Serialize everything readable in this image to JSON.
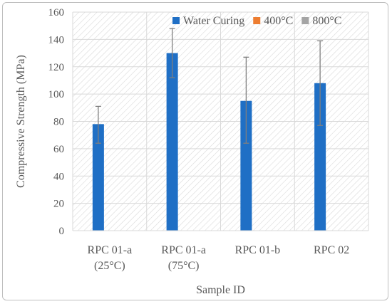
{
  "chart_data": {
    "type": "bar",
    "title": "",
    "xlabel": "Sample ID",
    "ylabel": "Compressive  Strength (MPa)",
    "ylim": [
      0,
      160
    ],
    "yticks": [
      0,
      20,
      40,
      60,
      80,
      100,
      120,
      140,
      160
    ],
    "categories": [
      [
        "RPC 01-a",
        "(25°C)"
      ],
      [
        "RPC 01-a",
        "(75°C)"
      ],
      [
        "RPC 01-b"
      ],
      [
        "RPC 02"
      ]
    ],
    "series": [
      {
        "name": "Water Curing",
        "color": "#1f6fc5",
        "values": [
          78,
          130,
          95,
          108
        ],
        "error_low": [
          64,
          112,
          64,
          77
        ],
        "error_high": [
          91,
          148,
          127,
          139
        ]
      },
      {
        "name": "400°C",
        "color": "#ed7d31",
        "values": [
          0,
          0,
          0,
          0
        ]
      },
      {
        "name": "800°C",
        "color": "#a5a5a5",
        "values": [
          0,
          0,
          0,
          0
        ]
      }
    ],
    "grid": true,
    "legend_position": "top-right",
    "plot_background": "diagonal-hatch"
  }
}
